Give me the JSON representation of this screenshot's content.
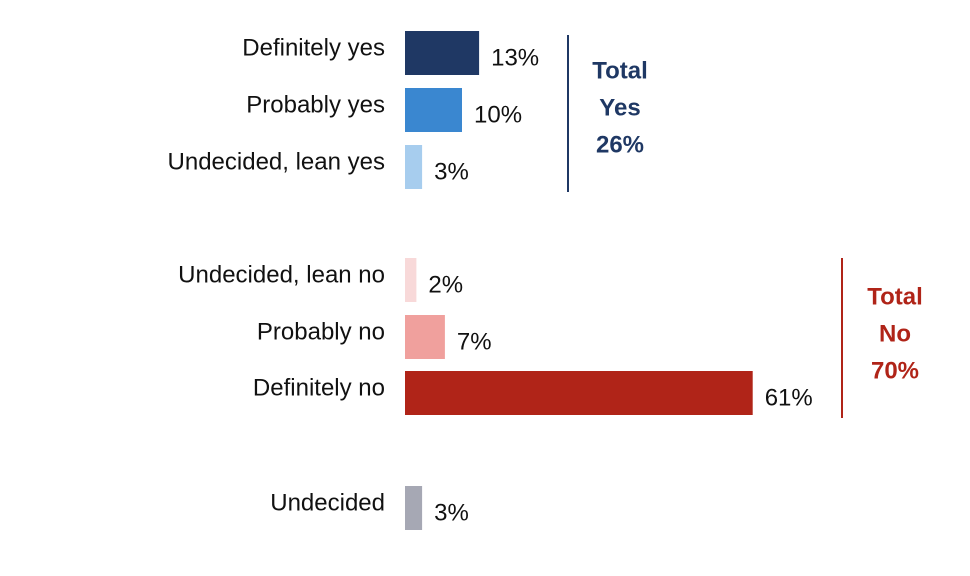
{
  "chart_data": {
    "type": "bar",
    "orientation": "horizontal",
    "categories": [
      "Definitely yes",
      "Probably yes",
      "Undecided, lean yes",
      "Undecided, lean no",
      "Probably no",
      "Definitely no",
      "Undecided"
    ],
    "values": [
      13,
      10,
      3,
      2,
      7,
      61,
      3
    ],
    "value_labels": [
      "13%",
      "10%",
      "3%",
      "2%",
      "7%",
      "61%",
      "3%"
    ],
    "colors": [
      "#1f3864",
      "#3a87d0",
      "#a7cdee",
      "#f8d9d9",
      "#f0a09d",
      "#b02418",
      "#a6a8b4"
    ],
    "annotations": [
      {
        "lines": [
          "Total",
          "Yes",
          "26%"
        ],
        "color": "#1f3864"
      },
      {
        "lines": [
          "Total",
          "No",
          "70%"
        ],
        "color": "#b02418"
      }
    ]
  }
}
